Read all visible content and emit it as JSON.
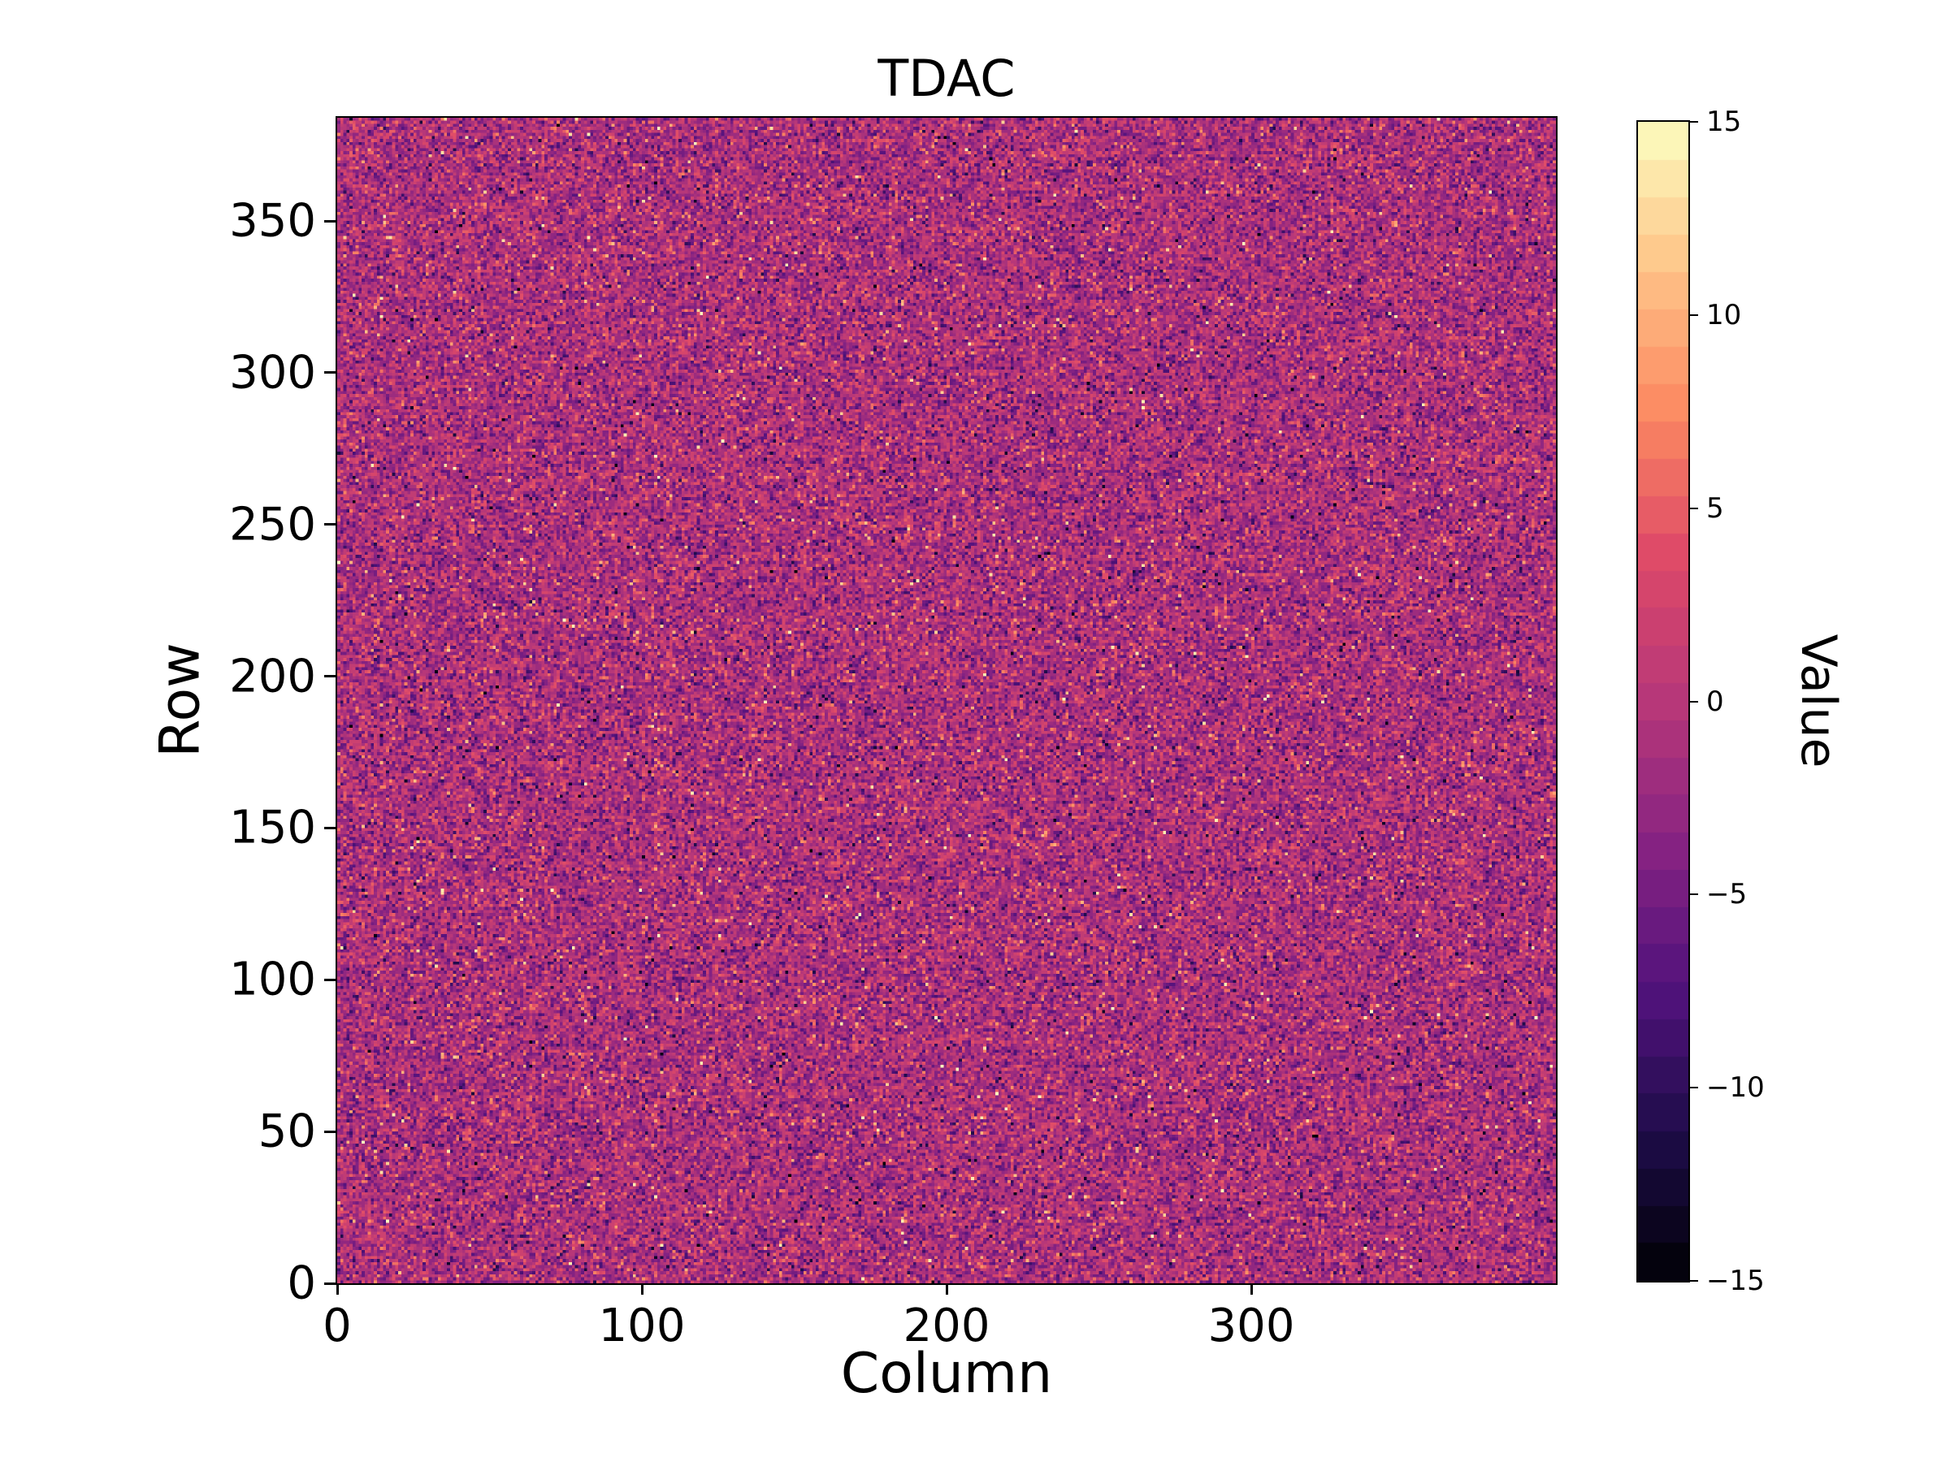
{
  "figure": {
    "background": "#ffffff",
    "text_color": "#000000"
  },
  "chart_data": {
    "type": "heatmap",
    "title": "TDAC",
    "xlabel": "Column",
    "ylabel": "Row",
    "colorbar_label": "Value",
    "x_range": [
      0,
      400
    ],
    "y_range": [
      0,
      384
    ],
    "x_ticks": [
      0,
      100,
      200,
      300
    ],
    "y_ticks": [
      0,
      50,
      100,
      150,
      200,
      250,
      300,
      350
    ],
    "colorbar_ticks": [
      15,
      10,
      5,
      0,
      -5,
      -10,
      -15
    ],
    "value_range": [
      -15,
      15
    ],
    "colormap": "magma",
    "colorbar_levels": 31,
    "grid": "off",
    "legend": "none",
    "data_description": "Per-pixel TDAC trim values on a 400 column x 384 row pixel matrix; random integer noise centered near -1 (std ~3.5) clipped to [-15,15], with sparse bright (orange/cream) and dark outlier speckles",
    "noise": {
      "mean": -1,
      "std": 3.5,
      "outlier_fraction": 0.02,
      "seed": 42
    },
    "colormap_stops": [
      [
        0.0,
        0,
        0,
        4
      ],
      [
        0.125,
        30,
        12,
        73
      ],
      [
        0.25,
        81,
        18,
        124
      ],
      [
        0.375,
        135,
        35,
        130
      ],
      [
        0.5,
        183,
        55,
        121
      ],
      [
        0.625,
        222,
        73,
        104
      ],
      [
        0.75,
        252,
        137,
        97
      ],
      [
        0.875,
        254,
        196,
        136
      ],
      [
        1.0,
        252,
        253,
        191
      ]
    ]
  }
}
